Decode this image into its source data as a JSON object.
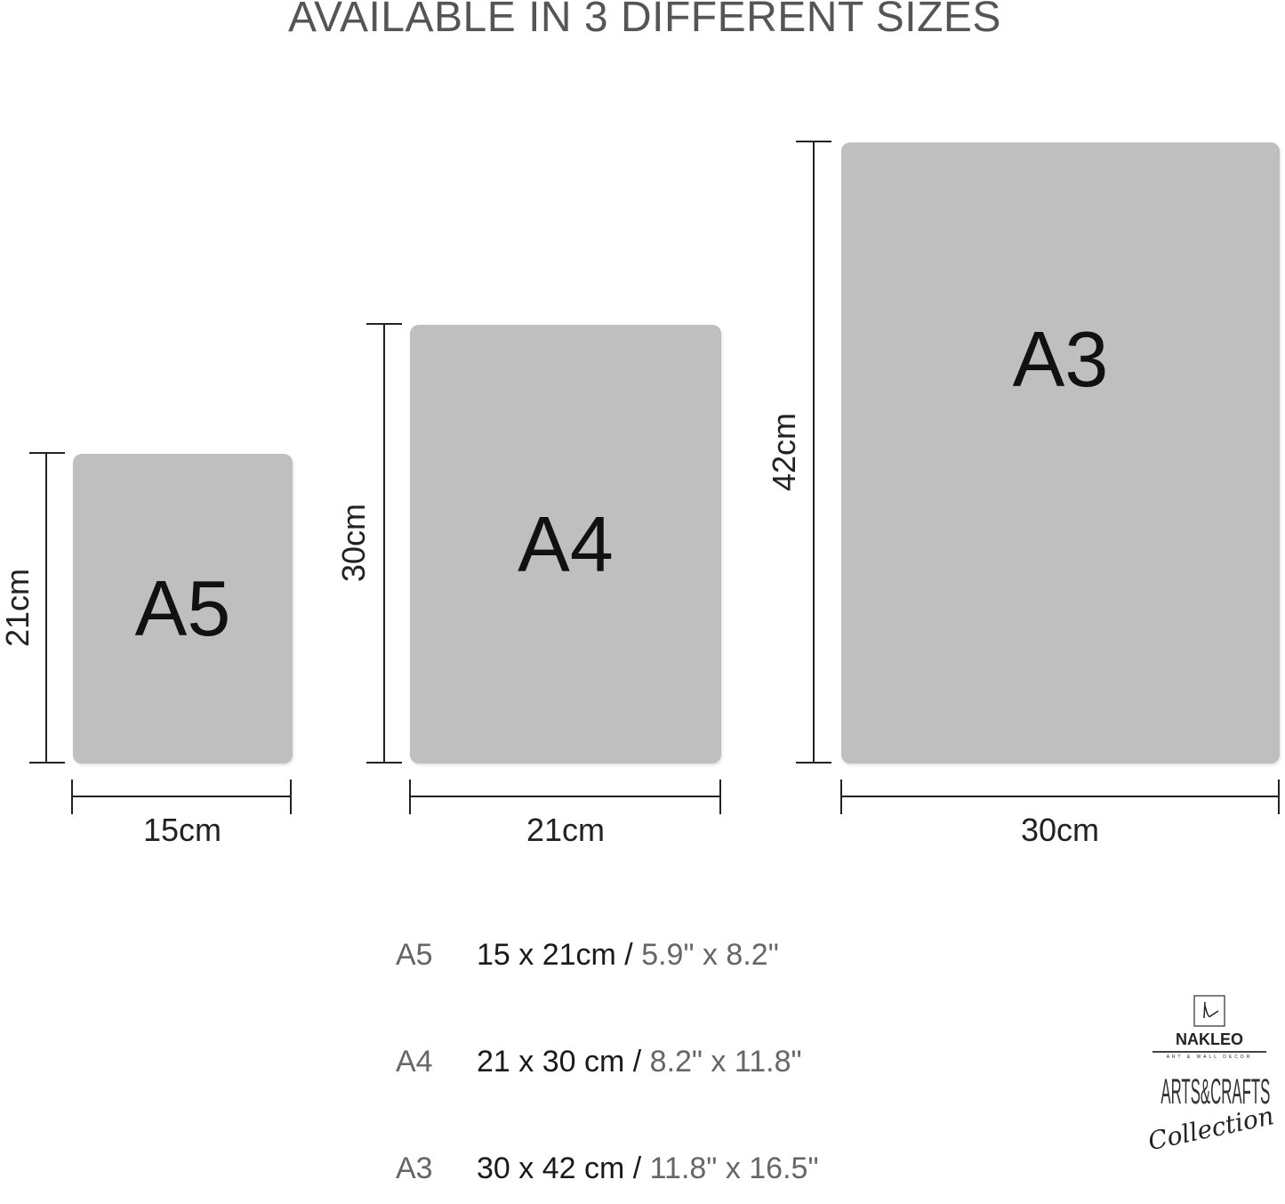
{
  "title": "AVAILABLE IN 3 DIFFERENT SIZES",
  "sheet_color": "#c0bfc0",
  "sheets": [
    {
      "label": "A5",
      "height_label": "21cm",
      "width_label": "15cm"
    },
    {
      "label": "A4",
      "height_label": "30cm",
      "width_label": "21cm"
    },
    {
      "label": "A3",
      "height_label": "42cm",
      "width_label": "30cm"
    }
  ],
  "size_table": [
    {
      "size": "A5",
      "cm": "15 x 21cm /",
      "inches": "5.9\" x 8.2\""
    },
    {
      "size": "A4",
      "cm": "21 x 30 cm /",
      "inches": "8.2\" x 11.8\""
    },
    {
      "size": "A3",
      "cm": "30 x 42 cm /",
      "inches": "11.8\" x 16.5\""
    }
  ],
  "logo": {
    "brand": "NAKLEO",
    "tagline": "ART & WALL DECOR",
    "collection": "ARTS&CRAFTS",
    "script": "Collection"
  }
}
